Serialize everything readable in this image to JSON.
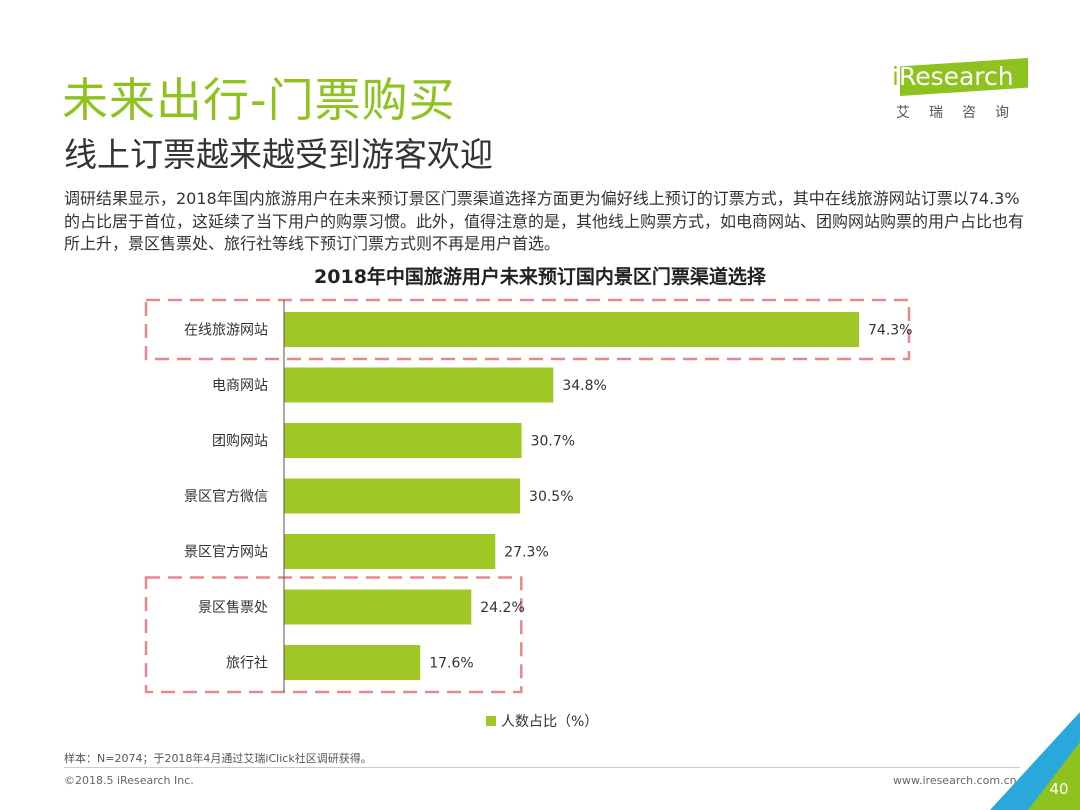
{
  "header": {
    "title": "未来出行-门票购买",
    "subtitle": "线上订票越来越受到游客欢迎",
    "body": "调研结果显示，2018年国内旅游用户在未来预订景区门票渠道选择方面更为偏好线上预订的订票方式，其中在线旅游网站订票以74.3%的占比居于首位，这延续了当下用户的购票习惯。此外，值得注意的是，其他线上购票方式，如电商网站、团购网站购票的用户占比也有所上升，景区售票处、旅行社等线下预订门票方式则不再是用户首选。"
  },
  "logo": {
    "brand_i": "i",
    "brand_rest": "Research",
    "chinese": "艾瑞咨询"
  },
  "chart_data": {
    "type": "bar",
    "orientation": "horizontal",
    "title": "2018年中国旅游用户未来预订国内景区门票渠道选择",
    "categories": [
      "在线旅游网站",
      "电商网站",
      "团购网站",
      "景区官方微信",
      "景区官方网站",
      "景区售票处",
      "旅行社"
    ],
    "values": [
      74.3,
      34.8,
      30.7,
      30.5,
      27.3,
      24.2,
      17.6
    ],
    "value_labels": [
      "74.3%",
      "34.8%",
      "30.7%",
      "30.5%",
      "27.3%",
      "24.2%",
      "17.6%"
    ],
    "series": [
      {
        "name": "人数占比（%）",
        "values": [
          74.3,
          34.8,
          30.7,
          30.5,
          27.3,
          24.2,
          17.6
        ]
      }
    ],
    "xlim": [
      0,
      74.3
    ],
    "legend_position": "bottom",
    "grid": false,
    "bar_color": "#9fc826",
    "highlight_color": "#e8878c",
    "highlight_groups": [
      [
        0
      ],
      [
        5,
        6
      ]
    ]
  },
  "legend": {
    "label": "人数占比（%）"
  },
  "footer": {
    "note": "样本：N=2074；于2018年4月通过艾瑞iClick社区调研获得。",
    "copyright": "©2018.5 iResearch Inc.",
    "website": "www.iresearch.com.cn",
    "page_number": "40"
  },
  "colors": {
    "accent": "#8dc21f",
    "corner_blue": "#2aa8dc"
  }
}
